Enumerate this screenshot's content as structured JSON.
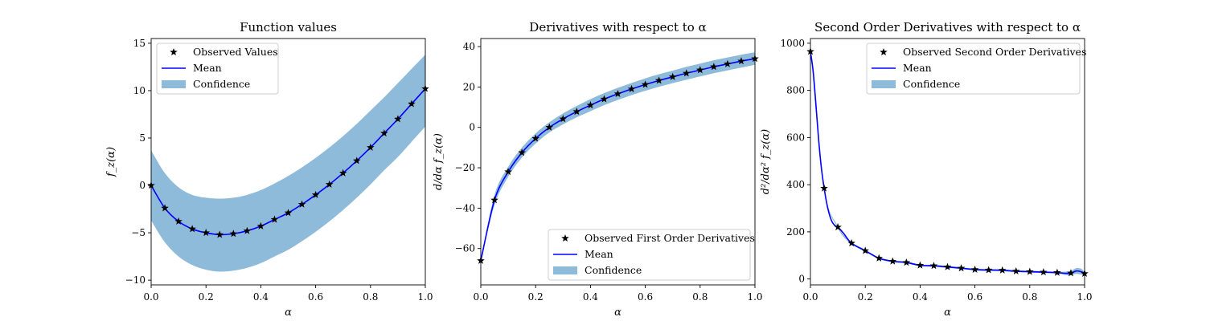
{
  "figure": {
    "colors": {
      "mean": "#0000ff",
      "confidence": "#8fbbdb",
      "observed": "#000000",
      "axes": "#000000"
    }
  },
  "chart_data": [
    {
      "type": "line",
      "title": "Function values",
      "xlabel": "α",
      "ylabel": "f_z(α)",
      "xlim": [
        0,
        1
      ],
      "ylim": [
        -10.5,
        15.5
      ],
      "xticks": [
        0,
        0.2,
        0.4,
        0.6,
        0.8,
        1.0
      ],
      "xtick_labels": [
        "0.0",
        "0.2",
        "0.4",
        "0.6",
        "0.8",
        "1.0"
      ],
      "yticks": [
        -10,
        -5,
        0,
        5,
        10,
        15
      ],
      "ytick_labels": [
        "−10",
        "−5",
        "0",
        "5",
        "10",
        "15"
      ],
      "legend": {
        "position": "upper-left",
        "entries": [
          "Observed Values",
          "Mean",
          "Confidence"
        ]
      },
      "x": [
        0,
        0.05,
        0.1,
        0.15,
        0.2,
        0.25,
        0.3,
        0.35,
        0.4,
        0.45,
        0.5,
        0.55,
        0.6,
        0.65,
        0.7,
        0.75,
        0.8,
        0.85,
        0.9,
        0.95,
        1.0
      ],
      "series": [
        {
          "name": "Observed Values",
          "kind": "markers",
          "values": [
            0.0,
            -2.4,
            -3.8,
            -4.6,
            -5.0,
            -5.2,
            -5.1,
            -4.8,
            -4.3,
            -3.6,
            -2.9,
            -2.0,
            -1.0,
            0.1,
            1.3,
            2.6,
            4.0,
            5.5,
            7.0,
            8.6,
            10.2
          ]
        },
        {
          "name": "Mean",
          "kind": "line",
          "values": [
            0.0,
            -2.4,
            -3.8,
            -4.6,
            -5.0,
            -5.2,
            -5.1,
            -4.8,
            -4.3,
            -3.6,
            -2.9,
            -2.0,
            -1.0,
            0.1,
            1.3,
            2.6,
            4.0,
            5.5,
            7.0,
            8.6,
            10.2
          ]
        },
        {
          "name": "Confidence",
          "kind": "band",
          "lower": [
            -3.7,
            -6.0,
            -7.5,
            -8.4,
            -8.9,
            -9.1,
            -9.0,
            -8.7,
            -8.2,
            -7.5,
            -6.8,
            -5.9,
            -4.9,
            -3.8,
            -2.6,
            -1.3,
            0.1,
            1.6,
            3.0,
            4.6,
            6.2
          ],
          "upper": [
            3.7,
            1.3,
            -0.2,
            -1.0,
            -1.3,
            -1.4,
            -1.3,
            -1.0,
            -0.5,
            0.2,
            1.0,
            1.9,
            2.9,
            4.0,
            5.2,
            6.5,
            7.9,
            9.3,
            10.8,
            12.3,
            13.8
          ]
        }
      ]
    },
    {
      "type": "line",
      "title": "Derivatives with respect to α",
      "xlabel": "α",
      "ylabel": "d/dα f_z(α)",
      "xlim": [
        0,
        1
      ],
      "ylim": [
        -78,
        44
      ],
      "xticks": [
        0,
        0.2,
        0.4,
        0.6,
        0.8,
        1.0
      ],
      "xtick_labels": [
        "0.0",
        "0.2",
        "0.4",
        "0.6",
        "0.8",
        "1.0"
      ],
      "yticks": [
        -60,
        -40,
        -20,
        0,
        20,
        40
      ],
      "ytick_labels": [
        "−60",
        "−40",
        "−20",
        "0",
        "20",
        "40"
      ],
      "legend": {
        "position": "lower-right",
        "entries": [
          "Observed First Order Derivatives",
          "Mean",
          "Confidence"
        ]
      },
      "x": [
        0,
        0.05,
        0.1,
        0.15,
        0.2,
        0.25,
        0.3,
        0.35,
        0.4,
        0.45,
        0.5,
        0.55,
        0.6,
        0.65,
        0.7,
        0.75,
        0.8,
        0.85,
        0.9,
        0.95,
        1.0
      ],
      "series": [
        {
          "name": "Observed First Order Derivatives",
          "kind": "markers",
          "values": [
            -66,
            -36,
            -22,
            -12.5,
            -5.5,
            0,
            4.2,
            7.8,
            11,
            14,
            16.6,
            19,
            21.2,
            23.2,
            25,
            26.8,
            28.4,
            30,
            31.4,
            32.8,
            34
          ]
        },
        {
          "name": "Mean",
          "kind": "line",
          "values": [
            -66,
            -36,
            -22,
            -12.5,
            -5.5,
            0,
            4.2,
            7.8,
            11,
            14,
            16.6,
            19,
            21.2,
            23.2,
            25,
            26.8,
            28.4,
            30,
            31.4,
            32.8,
            34
          ]
        },
        {
          "name": "Confidence",
          "kind": "band",
          "lower": [
            -66.5,
            -38.5,
            -24.5,
            -15,
            -8,
            -2.5,
            1.5,
            5,
            8,
            11,
            13.6,
            16,
            18.1,
            20.1,
            21.9,
            23.6,
            25.2,
            26.8,
            28.2,
            29.6,
            31
          ],
          "upper": [
            -65.5,
            -33.5,
            -19.5,
            -10,
            -3,
            2.5,
            6.9,
            10.6,
            14,
            17,
            19.6,
            22,
            24.3,
            26.3,
            28.1,
            30,
            31.6,
            33.2,
            34.6,
            36,
            37.2
          ]
        }
      ]
    },
    {
      "type": "line",
      "title": "Second Order Derivatives with respect to α",
      "xlabel": "α",
      "ylabel": "d²/dα² f_z(α)",
      "xlim": [
        0,
        1
      ],
      "ylim": [
        -25,
        1020
      ],
      "xticks": [
        0,
        0.2,
        0.4,
        0.6,
        0.8,
        1.0
      ],
      "xtick_labels": [
        "0.0",
        "0.2",
        "0.4",
        "0.6",
        "0.8",
        "1.0"
      ],
      "yticks": [
        0,
        200,
        400,
        600,
        800,
        1000
      ],
      "ytick_labels": [
        "0",
        "200",
        "400",
        "600",
        "800",
        "1000"
      ],
      "legend": {
        "position": "upper-right",
        "entries": [
          "Observed Second Order Derivatives",
          "Mean",
          "Confidence"
        ]
      },
      "x": [
        0,
        0.05,
        0.1,
        0.15,
        0.2,
        0.25,
        0.3,
        0.35,
        0.4,
        0.45,
        0.5,
        0.55,
        0.6,
        0.65,
        0.7,
        0.75,
        0.8,
        0.85,
        0.9,
        0.95,
        1.0
      ],
      "series": [
        {
          "name": "Observed Second Order Derivatives",
          "kind": "markers",
          "values": [
            965,
            385,
            220,
            152,
            120,
            88,
            75,
            70,
            58,
            56,
            51,
            46,
            40,
            38,
            37,
            33,
            31,
            29,
            27,
            25,
            23
          ]
        },
        {
          "name": "Mean",
          "kind": "curve",
          "x": [
            0,
            0.01,
            0.02,
            0.03,
            0.04,
            0.05,
            0.06,
            0.07,
            0.08,
            0.09,
            0.1,
            0.12,
            0.15,
            0.2,
            0.25,
            0.3,
            0.35,
            0.4,
            0.45,
            0.5,
            0.55,
            0.6,
            0.65,
            0.7,
            0.75,
            0.8,
            0.85,
            0.9,
            0.93,
            0.95,
            0.97,
            0.99,
            1.0
          ],
          "values": [
            965,
            880,
            740,
            590,
            470,
            385,
            318,
            270,
            240,
            226,
            220,
            195,
            152,
            120,
            88,
            75,
            70,
            58,
            56,
            51,
            46,
            40,
            38,
            37,
            33,
            31,
            29,
            27,
            24,
            25,
            34,
            30,
            23
          ]
        },
        {
          "name": "Confidence",
          "kind": "band",
          "x": [
            0,
            0.05,
            0.1,
            0.15,
            0.2,
            0.25,
            0.3,
            0.35,
            0.4,
            0.45,
            0.5,
            0.55,
            0.6,
            0.65,
            0.7,
            0.75,
            0.8,
            0.85,
            0.9,
            0.93,
            0.95,
            0.97,
            0.99,
            1.0
          ],
          "lower": [
            962,
            382,
            216,
            148,
            116,
            84,
            71,
            66,
            54,
            52,
            47,
            42,
            36,
            34,
            33,
            29,
            27,
            25,
            23,
            17,
            17,
            22,
            18,
            19
          ],
          "upper": [
            968,
            388,
            224,
            156,
            124,
            92,
            79,
            74,
            62,
            60,
            55,
            50,
            44,
            42,
            41,
            37,
            35,
            33,
            31,
            31,
            35,
            46,
            42,
            27
          ]
        }
      ]
    }
  ]
}
